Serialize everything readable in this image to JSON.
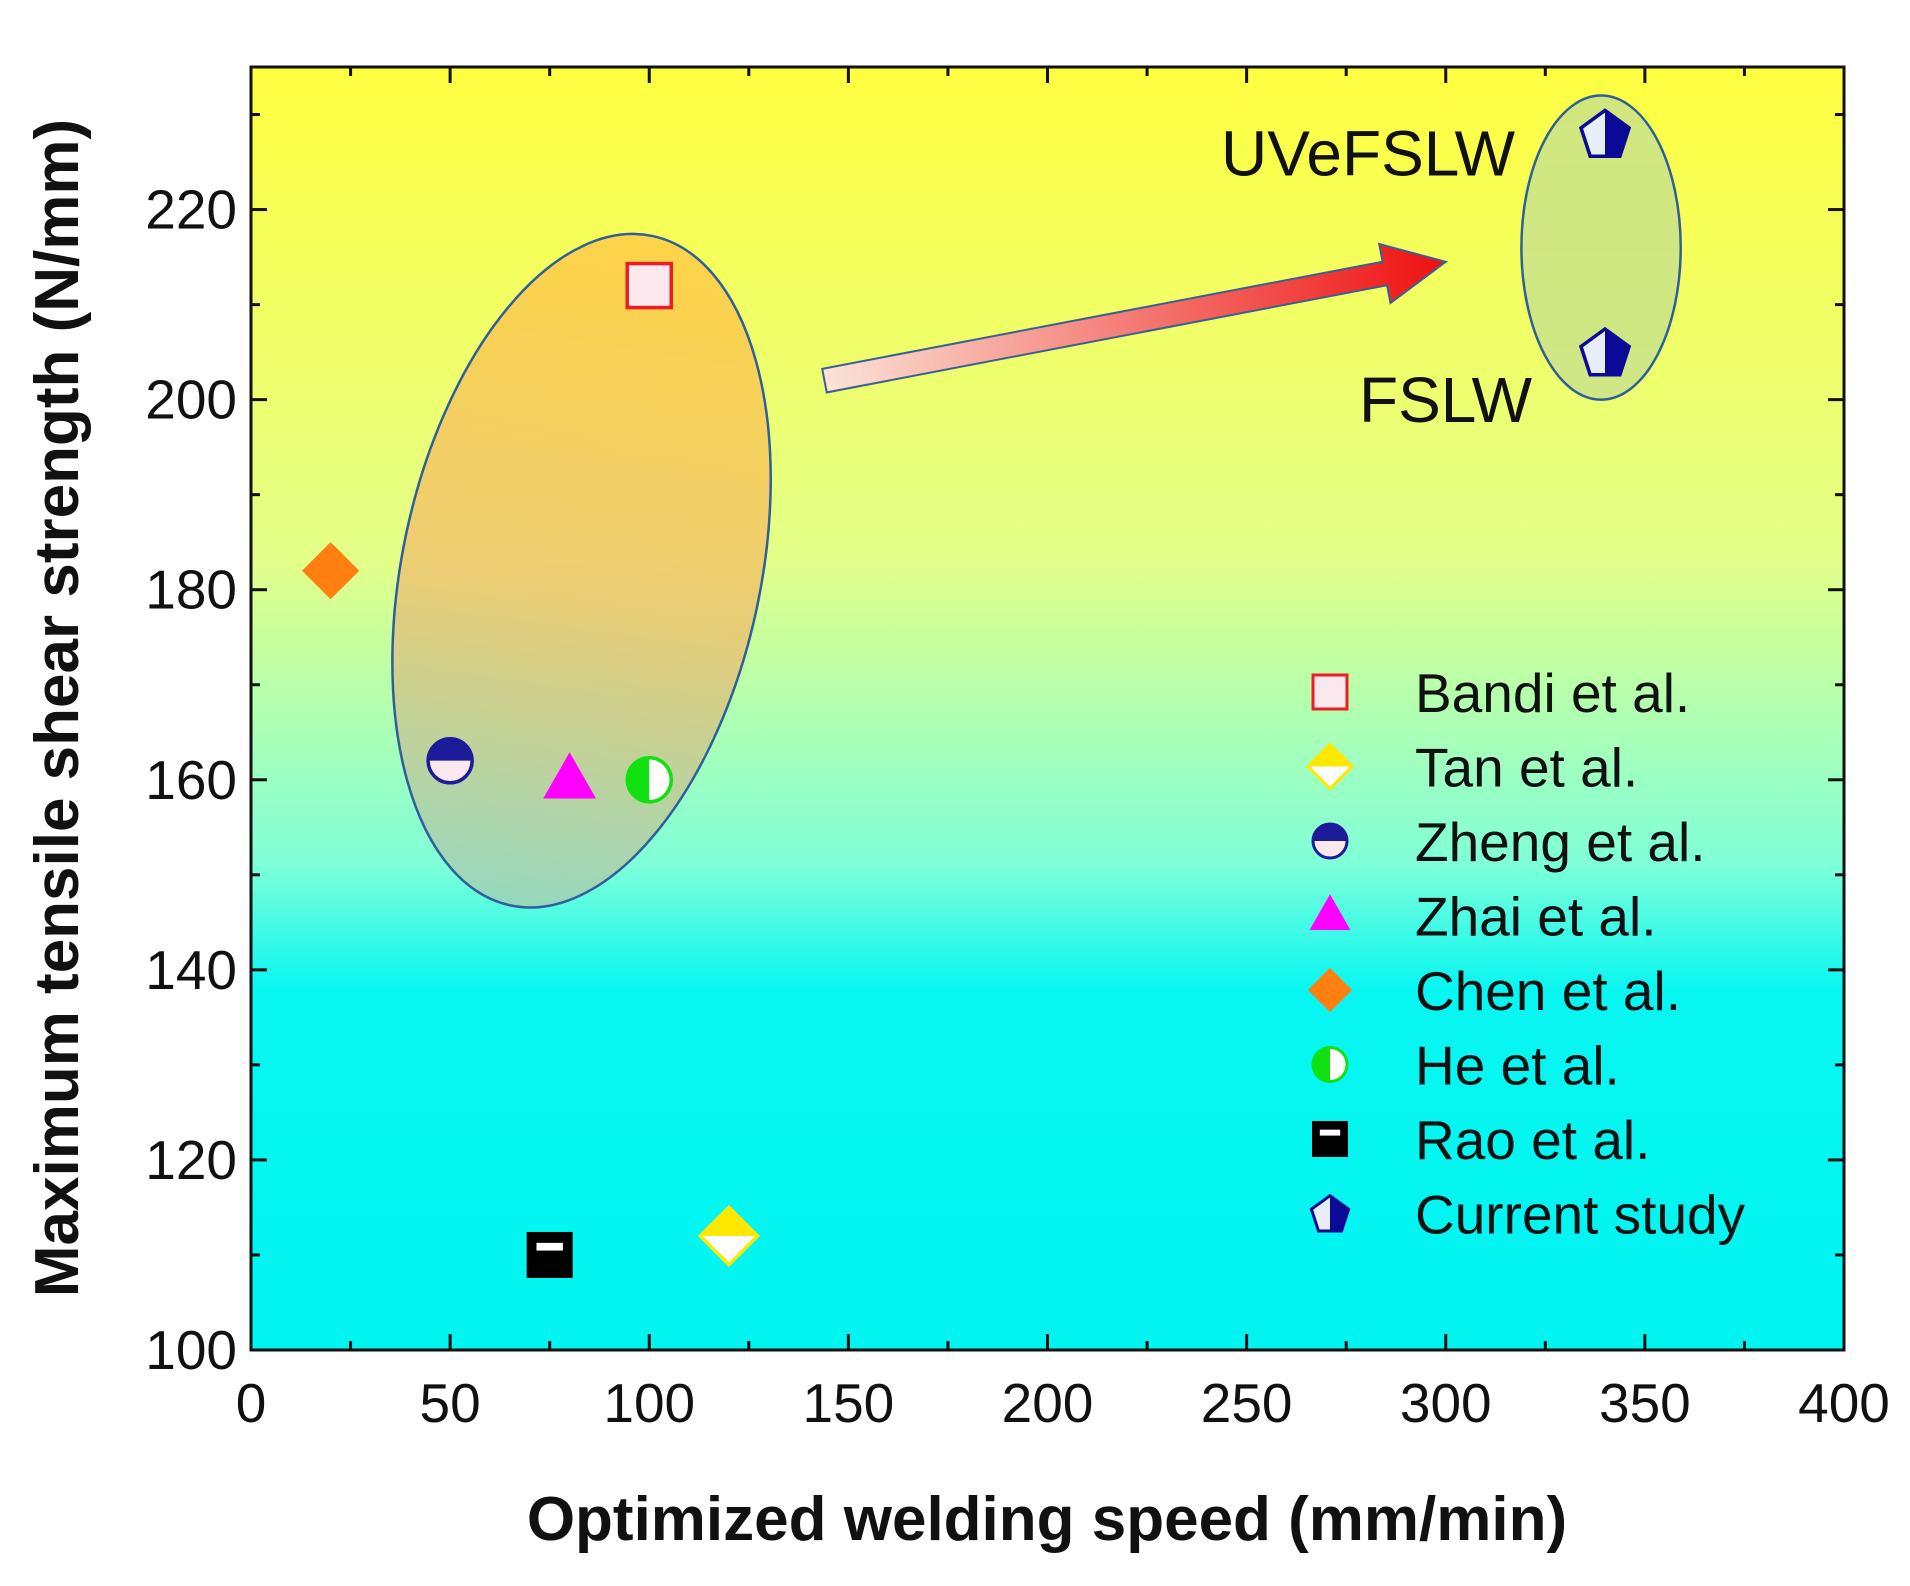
{
  "chart_data": {
    "type": "scatter",
    "xlabel": "Optimized welding speed (mm/min)",
    "ylabel": "Maximum tensile shear strength (N/mm)",
    "xlim": [
      0,
      400
    ],
    "ylim": [
      100,
      235
    ],
    "x_ticks": [
      0,
      50,
      100,
      150,
      200,
      250,
      300,
      350,
      400
    ],
    "y_ticks": [
      100,
      120,
      140,
      160,
      180,
      200,
      220
    ],
    "grid": false,
    "legend_position": "bottom-right",
    "background_gradient": [
      "#00f5f0",
      "#ffff40"
    ],
    "series": [
      {
        "name": "Bandi et al.",
        "marker": "square-open",
        "color": "#ee1c25",
        "points": [
          {
            "x": 100,
            "y": 212
          }
        ]
      },
      {
        "name": "Tan et al.",
        "marker": "diamond-half-bottom",
        "color": "#ffe800",
        "points": [
          {
            "x": 120,
            "y": 112
          }
        ]
      },
      {
        "name": "Zheng et al.",
        "marker": "circle-half-bottom",
        "color": "#1c1c9a",
        "points": [
          {
            "x": 50,
            "y": 162
          }
        ]
      },
      {
        "name": "Zhai et al.",
        "marker": "triangle",
        "color": "#ff00ff",
        "points": [
          {
            "x": 80,
            "y": 160
          }
        ]
      },
      {
        "name": "Chen et al.",
        "marker": "diamond",
        "color": "#ff8010",
        "points": [
          {
            "x": 20,
            "y": 182
          }
        ]
      },
      {
        "name": "He et al.",
        "marker": "circle-half-right",
        "color": "#11e011",
        "points": [
          {
            "x": 100,
            "y": 160
          }
        ]
      },
      {
        "name": "Rao et al.",
        "marker": "square-half-top",
        "color": "#000000",
        "points": [
          {
            "x": 75,
            "y": 110
          }
        ]
      },
      {
        "name": "Current study",
        "marker": "pentagon-half-left",
        "color": "#0a0a96",
        "points": [
          {
            "x": 340,
            "y": 228
          },
          {
            "x": 340,
            "y": 205
          }
        ]
      }
    ],
    "annotations": [
      {
        "text": "UVeFSLW",
        "x": 340,
        "y": 228
      },
      {
        "text": "FSLW",
        "x": 340,
        "y": 205
      }
    ],
    "ellipses": [
      {
        "center": [
          83,
          182
        ],
        "radius_x": 45,
        "radius_y": 36,
        "fill": "#f7b85a"
      },
      {
        "center": [
          339,
          216
        ],
        "radius_x": 20,
        "radius_y": 16,
        "fill": "#c9e388"
      }
    ],
    "arrow": {
      "from": [
        144,
        202
      ],
      "to": [
        300,
        214.5
      ]
    }
  }
}
